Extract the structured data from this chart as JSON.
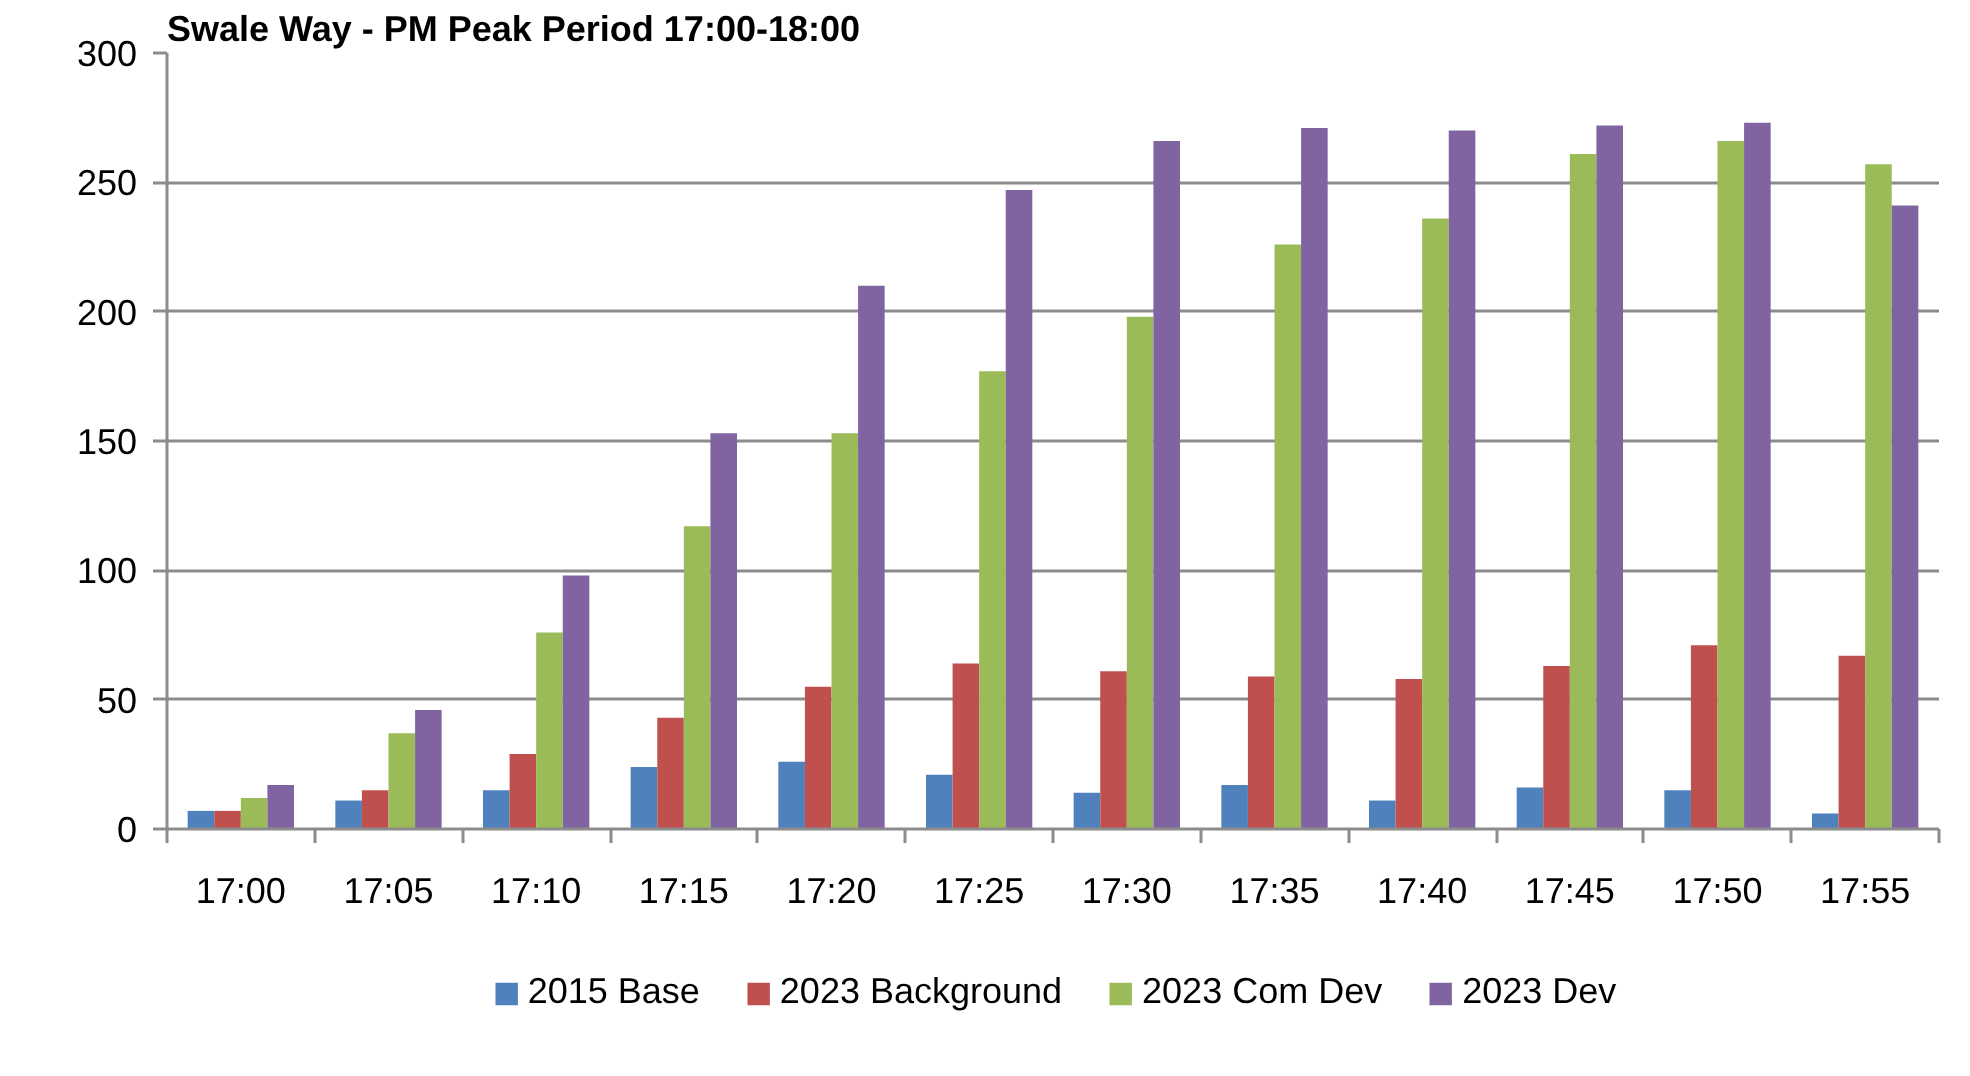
{
  "chart_data": {
    "type": "bar",
    "title": "Swale Way - PM Peak Period 17:00-18:00",
    "categories": [
      "17:00",
      "17:05",
      "17:10",
      "17:15",
      "17:20",
      "17:25",
      "17:30",
      "17:35",
      "17:40",
      "17:45",
      "17:50",
      "17:55"
    ],
    "series": [
      {
        "name": "2015 Base",
        "color": "#4f81bd",
        "values": [
          7,
          11,
          15,
          24,
          26,
          21,
          14,
          17,
          11,
          16,
          15,
          6
        ]
      },
      {
        "name": "2023 Background",
        "color": "#c0504d",
        "values": [
          7,
          15,
          29,
          43,
          55,
          64,
          61,
          59,
          58,
          63,
          71,
          67
        ]
      },
      {
        "name": "2023 Com Dev",
        "color": "#9bbb59",
        "values": [
          12,
          37,
          76,
          117,
          153,
          177,
          198,
          226,
          236,
          261,
          266,
          257
        ]
      },
      {
        "name": "2023 Dev",
        "color": "#8064a2",
        "values": [
          17,
          46,
          98,
          153,
          210,
          247,
          266,
          271,
          270,
          272,
          273,
          241
        ]
      }
    ],
    "ylim": [
      0,
      300
    ],
    "yticks": [
      0,
      50,
      100,
      150,
      200,
      250,
      300
    ],
    "grid": "y",
    "legend": "bottom"
  }
}
